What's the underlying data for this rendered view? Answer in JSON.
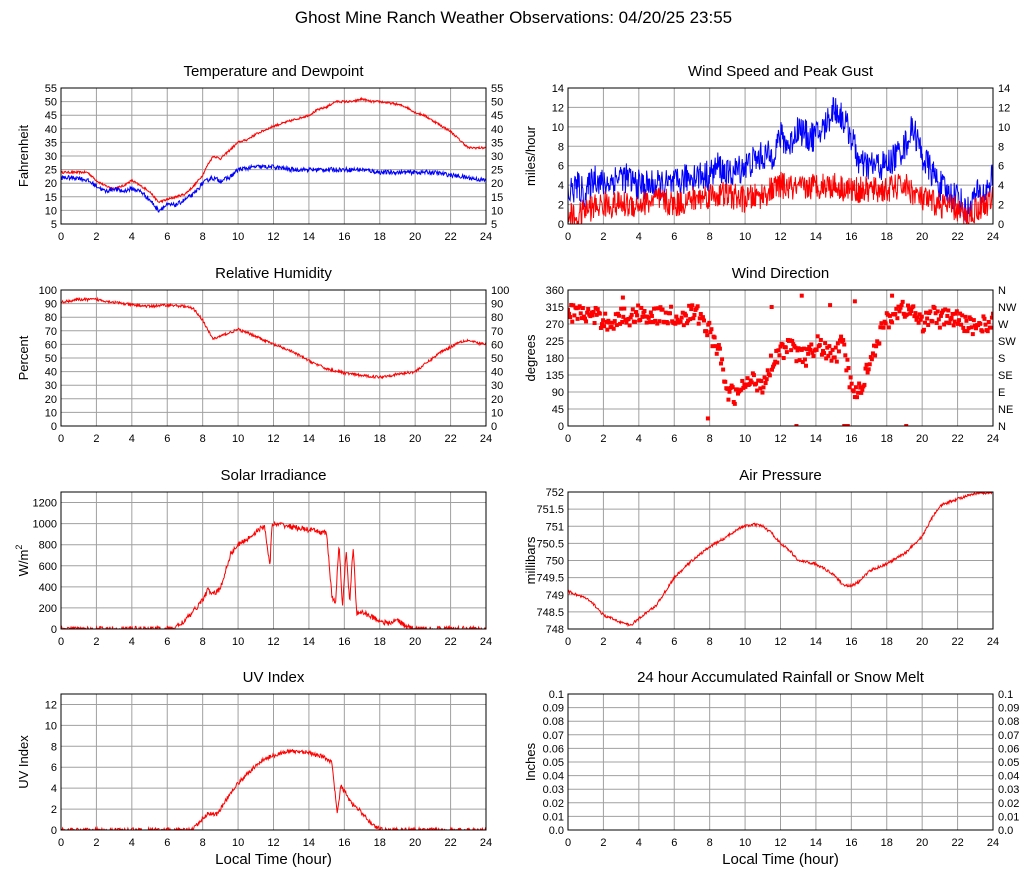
{
  "page_title": "Ghost Mine Ranch Weather Observations: 04/20/25 23:55",
  "xlabel": "Local Time (hour)",
  "colors": {
    "primary": "#ff0000",
    "secondary": "#0000ff",
    "grid": "#a0a0a0"
  },
  "chart_data": [
    {
      "id": "temp",
      "type": "line",
      "title": "Temperature and Dewpoint",
      "xlabel": "",
      "ylabel": "Fahrenheit",
      "xlim": [
        0,
        24
      ],
      "xticks": [
        0,
        2,
        4,
        6,
        8,
        10,
        12,
        14,
        16,
        18,
        20,
        22,
        24
      ],
      "ylim": [
        5,
        55
      ],
      "yticks": [
        5,
        10,
        15,
        20,
        25,
        30,
        35,
        40,
        45,
        50,
        55
      ],
      "yticks_right": [
        5,
        10,
        15,
        20,
        25,
        30,
        35,
        40,
        45,
        50,
        55
      ],
      "grid": true,
      "series": [
        {
          "color": "#ff0000",
          "style": "line",
          "noise": 0.4,
          "x": [
            0,
            1,
            1.5,
            2,
            2.5,
            3,
            3.5,
            4,
            4.5,
            5,
            5.5,
            6,
            6.5,
            7,
            7.5,
            8,
            8.3,
            8.6,
            9,
            9.5,
            10,
            10.5,
            11,
            12,
            13,
            14,
            14.5,
            15,
            15.5,
            16,
            16.5,
            17,
            17.5,
            18,
            19,
            19.5,
            20,
            20.5,
            21,
            21.5,
            22,
            22.5,
            23,
            23.5,
            24
          ],
          "y": [
            24,
            24,
            24,
            21,
            19,
            18,
            19,
            21,
            19,
            17,
            13,
            14,
            15,
            16,
            19,
            23,
            27,
            30,
            29,
            32,
            35,
            36,
            38,
            41,
            43,
            45,
            47,
            48,
            50,
            50,
            50,
            51,
            50,
            50,
            49,
            48,
            46,
            45,
            43,
            41,
            39,
            36,
            33,
            33,
            33
          ]
        },
        {
          "color": "#0000ff",
          "style": "line",
          "noise": 0.8,
          "x": [
            0,
            1,
            1.5,
            2,
            2.5,
            3,
            3.5,
            4,
            4.5,
            5,
            5.5,
            6,
            6.5,
            7,
            7.5,
            8,
            8.5,
            9,
            9.5,
            10,
            11,
            12,
            13,
            14,
            15,
            16,
            17,
            18,
            19,
            20,
            21,
            22,
            23,
            24
          ],
          "y": [
            22,
            22,
            21,
            19,
            17,
            18,
            17,
            18,
            17,
            14,
            10,
            12,
            12,
            14,
            16,
            20,
            22,
            21,
            22,
            25,
            26,
            26,
            25,
            25,
            25,
            25,
            25,
            24,
            24,
            24,
            24,
            23,
            22,
            21
          ]
        }
      ]
    },
    {
      "id": "wind",
      "type": "line",
      "title": "Wind Speed and Peak Gust",
      "xlabel": "",
      "ylabel": "miles/hour",
      "xlim": [
        0,
        24
      ],
      "xticks": [
        0,
        2,
        4,
        6,
        8,
        10,
        12,
        14,
        16,
        18,
        20,
        22,
        24
      ],
      "ylim": [
        0,
        14
      ],
      "yticks": [
        0,
        2,
        4,
        6,
        8,
        10,
        12,
        14
      ],
      "yticks_right": [
        0,
        2,
        4,
        6,
        8,
        10,
        12,
        14
      ],
      "grid": true,
      "series": [
        {
          "color": "#0000ff",
          "style": "line",
          "noise": 1.6,
          "x": [
            0,
            0.5,
            1,
            1.5,
            2,
            3,
            4,
            5,
            6,
            7,
            8,
            8.5,
            9,
            10,
            11,
            11.5,
            12,
            12.5,
            13,
            13.5,
            14,
            14.5,
            15,
            15.5,
            16,
            16.5,
            17,
            18,
            19,
            19.5,
            20,
            21,
            21.5,
            22,
            22.5,
            23,
            23.5,
            24
          ],
          "y": [
            3,
            4,
            3,
            5,
            4,
            5,
            4,
            4,
            4,
            5,
            5,
            6,
            5,
            6,
            7,
            7,
            9,
            8,
            10,
            9,
            9,
            10,
            12,
            11,
            9,
            6,
            6,
            6,
            8,
            10,
            7,
            4,
            3,
            3,
            1,
            3,
            3,
            5
          ]
        },
        {
          "color": "#ff0000",
          "style": "line",
          "noise": 1.4,
          "x": [
            0,
            0.5,
            1,
            2,
            3,
            4,
            5,
            6,
            7,
            8,
            9,
            10,
            11,
            12,
            13,
            14,
            15,
            16,
            17,
            18,
            19,
            20,
            21,
            22,
            22.5,
            23,
            24
          ],
          "y": [
            1,
            0.5,
            1.5,
            2,
            2,
            2,
            2.5,
            2,
            2.5,
            3,
            3,
            2.5,
            3,
            4,
            3.5,
            4,
            4,
            3.5,
            3.5,
            3.5,
            4,
            2.5,
            2,
            1.5,
            0.5,
            1.5,
            2.5
          ]
        }
      ]
    },
    {
      "id": "humidity",
      "type": "line",
      "title": "Relative Humidity",
      "xlabel": "",
      "ylabel": "Percent",
      "xlim": [
        0,
        24
      ],
      "xticks": [
        0,
        2,
        4,
        6,
        8,
        10,
        12,
        14,
        16,
        18,
        20,
        22,
        24
      ],
      "ylim": [
        0,
        100
      ],
      "yticks": [
        0,
        10,
        20,
        30,
        40,
        50,
        60,
        70,
        80,
        90,
        100
      ],
      "yticks_right": [
        0,
        10,
        20,
        30,
        40,
        50,
        60,
        70,
        80,
        90,
        100
      ],
      "grid": true,
      "series": [
        {
          "color": "#ff0000",
          "style": "line",
          "noise": 1.0,
          "x": [
            0,
            0.5,
            1,
            2,
            3,
            4,
            5,
            6,
            7,
            7.5,
            8,
            8.3,
            8.6,
            9,
            10,
            11,
            12,
            13,
            14,
            15,
            16,
            17,
            18,
            19,
            20,
            20.5,
            21,
            21.5,
            22,
            22.5,
            23,
            23.5,
            24
          ],
          "y": [
            91,
            92,
            93,
            93,
            91,
            89,
            88,
            89,
            88,
            86,
            78,
            70,
            64,
            66,
            71,
            66,
            60,
            55,
            48,
            42,
            39,
            37,
            36,
            38,
            40,
            45,
            50,
            55,
            58,
            62,
            63,
            61,
            60
          ]
        }
      ]
    },
    {
      "id": "direction",
      "type": "scatter",
      "title": "Wind Direction",
      "xlabel": "",
      "ylabel": "degrees",
      "xlim": [
        0,
        24
      ],
      "xticks": [
        0,
        2,
        4,
        6,
        8,
        10,
        12,
        14,
        16,
        18,
        20,
        22,
        24
      ],
      "ylim": [
        0,
        360
      ],
      "yticks": [
        0,
        45,
        90,
        135,
        180,
        225,
        270,
        315,
        360
      ],
      "yticks_right": [
        "N",
        "NE",
        "E",
        "SE",
        "S",
        "SW",
        "W",
        "NW",
        "N"
      ],
      "grid": true,
      "series": [
        {
          "color": "#ff0000",
          "style": "points",
          "noise": 12,
          "x": [
            0,
            0.5,
            1,
            1.5,
            2,
            2.5,
            3,
            3.5,
            4,
            4.5,
            5,
            5.5,
            6,
            6.5,
            7,
            7.5,
            8,
            8.5,
            9,
            9.5,
            10,
            10.5,
            11,
            11.5,
            12,
            12.5,
            13,
            13.5,
            14,
            14.5,
            15,
            15.5,
            16,
            16.5,
            17,
            17.5,
            18,
            18.5,
            19,
            19.5,
            20,
            20.5,
            21,
            21.5,
            22,
            22.5,
            23,
            23.5,
            24
          ],
          "y": [
            300,
            300,
            295,
            290,
            280,
            275,
            290,
            285,
            300,
            295,
            290,
            295,
            290,
            285,
            300,
            290,
            250,
            200,
            90,
            80,
            110,
            120,
            110,
            170,
            200,
            210,
            190,
            180,
            220,
            200,
            180,
            220,
            100,
            90,
            170,
            230,
            280,
            300,
            310,
            300,
            270,
            300,
            280,
            290,
            280,
            270,
            265,
            270,
            275
          ]
        },
        {
          "color": "#ff0000",
          "style": "points",
          "noise": 0,
          "x": [
            7.9,
            12.9,
            15.6,
            15.8,
            19.1,
            3.1,
            11.5,
            13.2,
            14.8,
            16.2,
            18.3
          ],
          "y": [
            20,
            0,
            0,
            0,
            0,
            340,
            315,
            345,
            320,
            330,
            345
          ]
        }
      ]
    },
    {
      "id": "solar",
      "type": "line",
      "title": "Solar Irradiance",
      "xlabel": "",
      "ylabel": "W/m",
      "ylabel_sup": "2",
      "xlim": [
        0,
        24
      ],
      "xticks": [
        0,
        2,
        4,
        6,
        8,
        10,
        12,
        14,
        16,
        18,
        20,
        22,
        24
      ],
      "ylim": [
        0,
        1300
      ],
      "yticks": [
        0,
        200,
        400,
        600,
        800,
        1000,
        1200
      ],
      "yticks_right": [],
      "grid": true,
      "series": [
        {
          "color": "#ff0000",
          "style": "line",
          "noise": 25,
          "x": [
            0,
            6.2,
            6.5,
            7,
            7.5,
            8,
            8.3,
            8.6,
            9,
            9.3,
            9.6,
            10,
            10.5,
            11,
            11.5,
            11.8,
            11.9,
            12,
            12.5,
            13,
            14,
            15,
            15.3,
            15.5,
            15.7,
            15.9,
            16.1,
            16.3,
            16.5,
            16.7,
            17,
            17.5,
            18,
            18.5,
            19,
            19.5,
            20,
            24
          ],
          "y": [
            0,
            0,
            20,
            80,
            170,
            280,
            370,
            330,
            380,
            560,
            720,
            800,
            850,
            920,
            980,
            580,
            980,
            990,
            990,
            970,
            940,
            910,
            300,
            240,
            820,
            200,
            750,
            250,
            780,
            150,
            160,
            120,
            80,
            50,
            90,
            20,
            0,
            0
          ]
        }
      ]
    },
    {
      "id": "pressure",
      "type": "line",
      "title": "Air Pressure",
      "xlabel": "",
      "ylabel": "millibars",
      "xlim": [
        0,
        24
      ],
      "xticks": [
        0,
        2,
        4,
        6,
        8,
        10,
        12,
        14,
        16,
        18,
        20,
        22,
        24
      ],
      "ylim": [
        748.0,
        752.0
      ],
      "yticks": [
        748.0,
        748.5,
        749.0,
        749.5,
        750.0,
        750.5,
        751.0,
        751.5,
        752.0
      ],
      "yticks_right": [],
      "grid": true,
      "series": [
        {
          "color": "#ff0000",
          "style": "line",
          "noise": 0.04,
          "x": [
            0,
            0.5,
            1,
            1.5,
            2,
            2.5,
            3,
            3.5,
            4,
            5,
            6,
            7,
            8,
            9,
            9.5,
            10,
            10.5,
            11,
            11.5,
            12,
            12.5,
            13,
            14,
            15,
            15.5,
            16,
            16.5,
            17,
            18,
            19,
            20,
            20.5,
            21,
            22,
            23,
            24
          ],
          "y": [
            749.1,
            749.0,
            748.9,
            748.7,
            748.4,
            748.3,
            748.2,
            748.1,
            748.3,
            748.7,
            749.5,
            750.0,
            750.4,
            750.7,
            750.9,
            751.0,
            751.05,
            751.0,
            750.8,
            750.5,
            750.3,
            750.0,
            749.9,
            749.6,
            749.3,
            749.25,
            749.4,
            749.7,
            749.9,
            750.2,
            750.7,
            751.2,
            751.6,
            751.8,
            751.95,
            752.0
          ]
        }
      ]
    },
    {
      "id": "uv",
      "type": "line",
      "title": "UV Index",
      "xlabel": "Local Time (hour)",
      "ylabel": "UV Index",
      "xlim": [
        0,
        24
      ],
      "xticks": [
        0,
        2,
        4,
        6,
        8,
        10,
        12,
        14,
        16,
        18,
        20,
        22,
        24
      ],
      "ylim": [
        0,
        13
      ],
      "yticks": [
        0,
        2,
        4,
        6,
        8,
        10,
        12
      ],
      "yticks_right": [],
      "grid": true,
      "series": [
        {
          "color": "#ff0000",
          "style": "line",
          "noise": 0.2,
          "x": [
            0,
            7.4,
            7.8,
            8.3,
            8.8,
            9.2,
            9.7,
            10.2,
            10.8,
            11.3,
            11.8,
            12.3,
            12.8,
            13.3,
            13.8,
            14.3,
            14.8,
            15.3,
            15.6,
            15.8,
            16.1,
            16.4,
            16.8,
            17.2,
            17.6,
            18,
            18.3,
            24
          ],
          "y": [
            0,
            0,
            0.7,
            1.6,
            1.5,
            2.5,
            3.9,
            4.8,
            5.8,
            6.6,
            7.0,
            7.3,
            7.5,
            7.5,
            7.5,
            7.2,
            7.0,
            6.5,
            1.5,
            4.2,
            3.5,
            2.5,
            2.0,
            1.2,
            0.5,
            0.1,
            0,
            0
          ]
        }
      ]
    },
    {
      "id": "rain",
      "type": "line",
      "title": "24 hour Accumulated Rainfall or Snow Melt",
      "xlabel": "Local Time (hour)",
      "ylabel": "Inches",
      "xlim": [
        0,
        24
      ],
      "xticks": [
        0,
        2,
        4,
        6,
        8,
        10,
        12,
        14,
        16,
        18,
        20,
        22,
        24
      ],
      "ylim": [
        0,
        0.1
      ],
      "yticks": [
        "0.0",
        "0.01",
        "0.02",
        "0.03",
        "0.04",
        "0.05",
        "0.06",
        "0.07",
        "0.08",
        "0.09",
        "0.1"
      ],
      "yticks_right": [
        "0.0",
        "0.01",
        "0.02",
        "0.03",
        "0.04",
        "0.05",
        "0.06",
        "0.07",
        "0.08",
        "0.09",
        "0.1"
      ],
      "grid": true,
      "series": [
        {
          "color": "#ff0000",
          "style": "line",
          "noise": 0,
          "x": [
            0,
            24
          ],
          "y": [
            0,
            0
          ]
        }
      ]
    }
  ]
}
